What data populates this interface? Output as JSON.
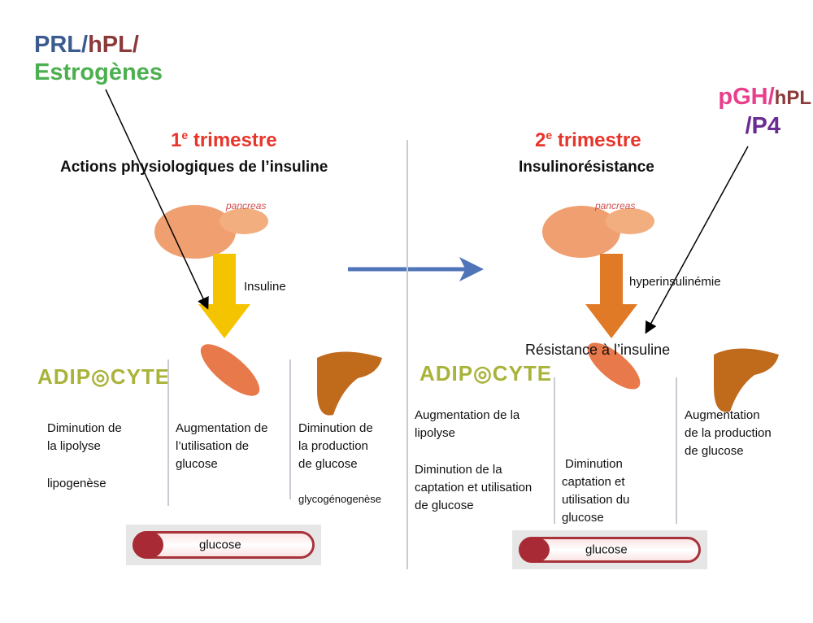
{
  "hormones_left": {
    "prl": "PRL/",
    "hpl": "hPL/",
    "estro": "Estrogènes",
    "colors": {
      "prl": "#3b5b8f",
      "hpl": "#8b3a3a",
      "estro": "#4caf50"
    }
  },
  "hormones_right": {
    "pgh": "pGH/",
    "hpl": "hPL",
    "p4": "/P4",
    "colors": {
      "pgh": "#e83e8c",
      "hpl": "#8b3a3a",
      "p4": "#6a2c91"
    }
  },
  "left": {
    "trimester_num": "1",
    "trimester_sup": "e",
    "trimester_word": " trimestre",
    "subtitle": "Actions physiologiques de l’insuline",
    "pancreas": "pancreas",
    "arrow_label": "Insuline",
    "adipocyte": "ADIP◎CYTE",
    "col1": [
      "Diminution de",
      "la lipolyse"
    ],
    "col1b": "lipogenèse",
    "col2": [
      "Augmentation de",
      "l’utilisation de",
      "glucose"
    ],
    "col3": [
      "Diminution de",
      "la production",
      "de glucose"
    ],
    "col3b": "glycogénogenèse",
    "glucose": "glucose",
    "glucose_indicator": "minus"
  },
  "right": {
    "trimester_num": "2",
    "trimester_sup": "e",
    "trimester_word": " trimestre",
    "subtitle": "Insulinorésistance",
    "pancreas": "pancreas",
    "arrow_label": "hyperinsulinémie",
    "resistance": "Résistance à l’insuline",
    "adipocyte": "ADIP◎CYTE",
    "col1": [
      "Augmentation de la",
      "lipolyse"
    ],
    "col1b": [
      "Diminution de la",
      "captation et utilisation",
      "de glucose"
    ],
    "col2": [
      "Diminution",
      "captation et",
      "utilisation du",
      "glucose"
    ],
    "col3": [
      "Augmentation",
      "de la production",
      "de glucose"
    ],
    "glucose": "glucose",
    "glucose_indicator": "plus"
  }
}
